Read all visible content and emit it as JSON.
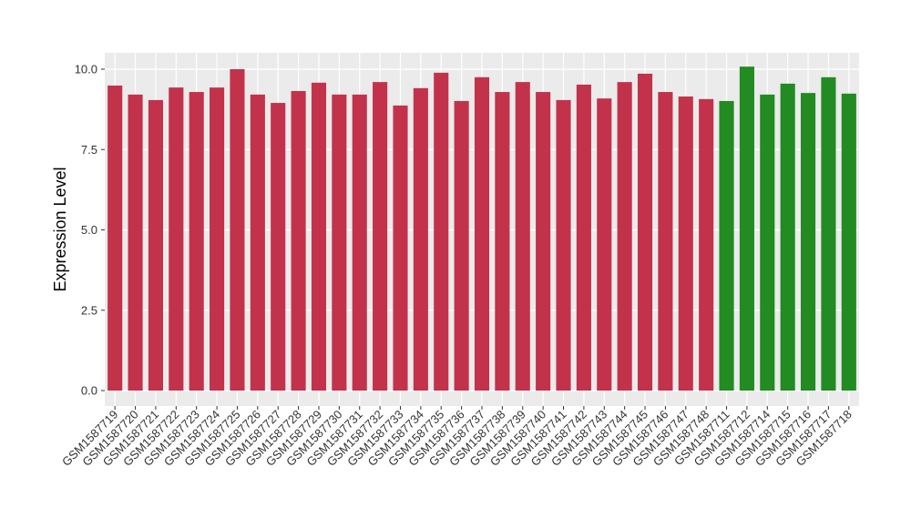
{
  "chart_data": {
    "type": "bar",
    "y_label": "Expression Level",
    "categories": [
      "GSM1587719",
      "GSM1587720",
      "GSM1587721",
      "GSM1587722",
      "GSM1587723",
      "GSM1587724",
      "GSM1587725",
      "GSM1587726",
      "GSM1587727",
      "GSM1587728",
      "GSM1587729",
      "GSM1587730",
      "GSM1587731",
      "GSM1587732",
      "GSM1587733",
      "GSM1587734",
      "GSM1587735",
      "GSM1587736",
      "GSM1587737",
      "GSM1587738",
      "GSM1587739",
      "GSM1587740",
      "GSM1587741",
      "GSM1587742",
      "GSM1587743",
      "GSM1587744",
      "GSM1587745",
      "GSM1587746",
      "GSM1587747",
      "GSM1587748",
      "GSM1587711",
      "GSM1587712",
      "GSM1587714",
      "GSM1587715",
      "GSM1587716",
      "GSM1587717",
      "GSM1587718"
    ],
    "values": [
      9.49,
      9.21,
      9.04,
      9.43,
      9.29,
      9.43,
      10.0,
      9.21,
      8.95,
      9.32,
      9.58,
      9.21,
      9.21,
      9.6,
      8.87,
      9.41,
      9.89,
      9.01,
      9.75,
      9.29,
      9.6,
      9.29,
      9.04,
      9.52,
      9.09,
      9.6,
      9.86,
      9.29,
      9.15,
      9.07,
      9.01,
      10.08,
      9.21,
      9.55,
      9.26,
      9.75,
      9.24
    ],
    "colors": [
      "#c3324b",
      "#c3324b",
      "#c3324b",
      "#c3324b",
      "#c3324b",
      "#c3324b",
      "#c3324b",
      "#c3324b",
      "#c3324b",
      "#c3324b",
      "#c3324b",
      "#c3324b",
      "#c3324b",
      "#c3324b",
      "#c3324b",
      "#c3324b",
      "#c3324b",
      "#c3324b",
      "#c3324b",
      "#c3324b",
      "#c3324b",
      "#c3324b",
      "#c3324b",
      "#c3324b",
      "#c3324b",
      "#c3324b",
      "#c3324b",
      "#c3324b",
      "#c3324b",
      "#c3324b",
      "#228b22",
      "#228b22",
      "#228b22",
      "#228b22",
      "#228b22",
      "#228b22",
      "#228b22"
    ],
    "ylim": [
      -0.48,
      10.51
    ],
    "yticks": [
      {
        "value": 0,
        "label": "0.0"
      },
      2.5,
      {
        "value": 5,
        "label": "5.0"
      },
      7.5,
      {
        "value": 10,
        "label": "10.0"
      }
    ],
    "grid": true
  }
}
